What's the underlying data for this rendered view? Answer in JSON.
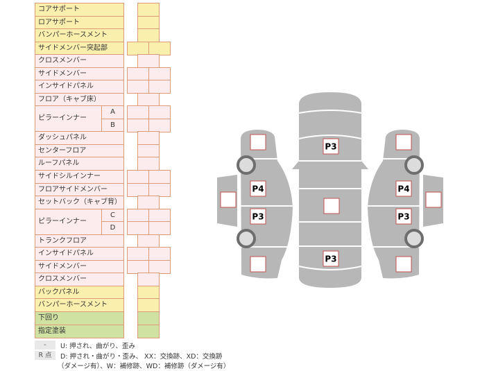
{
  "rows": [
    {
      "label": "コアサポート",
      "color": "yellow",
      "cells": 1
    },
    {
      "label": "ロアサポート",
      "color": "yellow",
      "cells": 1
    },
    {
      "label": "バンパーホースメント",
      "color": "yellow",
      "cells": 1
    },
    {
      "label": "サイドメンバー突起部",
      "color": "yellow",
      "cells": 2
    },
    {
      "label": "クロスメンバー",
      "color": "pink",
      "cells": 1
    },
    {
      "label": "サイドメンバー",
      "color": "pink",
      "cells": 2
    },
    {
      "label": "インサイドパネル",
      "color": "pink",
      "cells": 2
    },
    {
      "label": "フロア（キャブ床）",
      "color": "pink",
      "cells": 1
    },
    {
      "label": "ピラーインナー",
      "sub": [
        "A",
        "B"
      ],
      "color": "pink",
      "cells": 2
    },
    {
      "label": "ダッシュパネル",
      "color": "pink",
      "cells": 1
    },
    {
      "label": "センターフロア",
      "color": "pink",
      "cells": 1
    },
    {
      "label": "ルーフパネル",
      "color": "pink",
      "cells": 1
    },
    {
      "label": "サイドシルインナー",
      "color": "pink",
      "cells": 2
    },
    {
      "label": "フロアサイドメンバー",
      "color": "pink",
      "cells": 2
    },
    {
      "label": "セットバック（キャブ背）",
      "color": "pink",
      "cells": 1
    },
    {
      "label": "ピラーインナー",
      "sub": [
        "C",
        "D"
      ],
      "color": "pink",
      "cells": 2
    },
    {
      "label": "トランクフロア",
      "color": "pink",
      "cells": 1
    },
    {
      "label": "インサイドパネル",
      "color": "pink",
      "cells": 2
    },
    {
      "label": "サイドメンバー",
      "color": "pink",
      "cells": 2
    },
    {
      "label": "クロスメンバー",
      "color": "pink",
      "cells": 1
    },
    {
      "label": "バックパネル",
      "color": "yellow",
      "cells": 1
    },
    {
      "label": "バンパーホースメント",
      "color": "yellow",
      "cells": 1
    },
    {
      "label": "下回り",
      "color": "green",
      "cells": 1
    },
    {
      "label": "指定塗装",
      "color": "green",
      "cells": 1
    }
  ],
  "colors": {
    "yellow": "#fbefad",
    "pink": "#fdecee",
    "green": "#cfe2a2",
    "border": "#dc9a76",
    "car": "#b7b7b7"
  },
  "legend": [
    {
      "key": "-",
      "text": "U: 押され、曲がり、歪み"
    },
    {
      "key": "R 点",
      "text": "D: 押され・曲がり・歪み、 XX：交換跡、XD：交換跡",
      "text2": "（ダメージ有）、W：補修跡、WD：補修跡（ダメージ有）"
    }
  ],
  "diagram": {
    "center_front": "P3",
    "center_mid": "",
    "center_rear": "P3",
    "left_front": "",
    "left_door_front": "P4",
    "left_door_rear": "P3",
    "left_rear": "",
    "left_outer": "",
    "right_front": "",
    "right_door_front": "P4",
    "right_door_rear": "P3",
    "right_rear": "",
    "right_outer": ""
  }
}
